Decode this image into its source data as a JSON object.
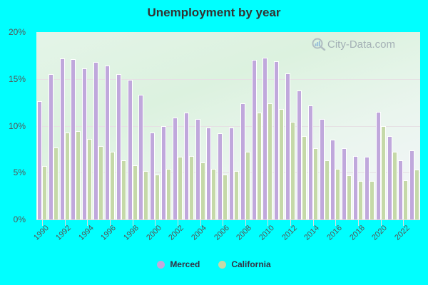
{
  "chart_data": {
    "type": "bar",
    "title": "Unemployment by year",
    "xlabel": "",
    "ylabel": "",
    "ylim": [
      0,
      20
    ],
    "yticks": [
      "0%",
      "5%",
      "10%",
      "15%",
      "20%"
    ],
    "grid": true,
    "legend_position": "bottom",
    "categories": [
      1990,
      1991,
      1992,
      1993,
      1994,
      1995,
      1996,
      1997,
      1998,
      1999,
      2000,
      2001,
      2002,
      2003,
      2004,
      2005,
      2006,
      2007,
      2008,
      2009,
      2010,
      2011,
      2012,
      2013,
      2014,
      2015,
      2016,
      2017,
      2018,
      2019,
      2020,
      2021,
      2022,
      2023
    ],
    "xtick_labels": [
      "1990",
      "1992",
      "1994",
      "1996",
      "1998",
      "2000",
      "2002",
      "2004",
      "2006",
      "2008",
      "2010",
      "2012",
      "2014",
      "2016",
      "2018",
      "2020",
      "2022"
    ],
    "series": [
      {
        "name": "Merced",
        "color": "#c0a8dc",
        "values": [
          12.6,
          15.5,
          17.2,
          17.1,
          16.1,
          16.8,
          16.4,
          15.5,
          14.9,
          13.3,
          9.3,
          10.0,
          10.9,
          11.4,
          10.7,
          9.8,
          9.2,
          9.8,
          12.4,
          17.0,
          17.3,
          16.9,
          15.6,
          13.8,
          12.2,
          10.7,
          8.5,
          7.6,
          6.8,
          6.7,
          11.5,
          8.9,
          6.3,
          7.4
        ]
      },
      {
        "name": "California",
        "color": "#c5d9a8",
        "values": [
          5.7,
          7.7,
          9.3,
          9.4,
          8.6,
          7.8,
          7.2,
          6.3,
          5.8,
          5.2,
          4.8,
          5.4,
          6.7,
          6.8,
          6.1,
          5.4,
          4.8,
          5.2,
          7.2,
          11.4,
          12.4,
          11.8,
          10.4,
          8.9,
          7.6,
          6.3,
          5.4,
          4.7,
          4.1,
          4.1,
          10.0,
          7.2,
          4.2,
          5.3
        ]
      }
    ]
  },
  "watermark": "City-Data.com",
  "legend": {
    "items": [
      {
        "label": "Merced",
        "color": "#c0a8dc"
      },
      {
        "label": "California",
        "color": "#c5d9a8"
      }
    ]
  }
}
